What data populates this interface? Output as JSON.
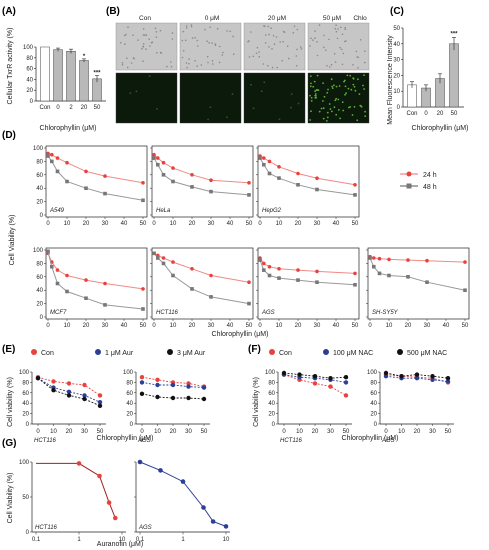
{
  "panels": {
    "A": {
      "label": "(A)",
      "ylabel": "Cellular TxrR activity (%)",
      "xlabel": "Chlorophyllin (μM)",
      "categories": [
        "Con",
        "0",
        "2",
        "20",
        "50"
      ],
      "yticks": [
        "0",
        "20",
        "40",
        "60",
        "80",
        "100"
      ],
      "sig": [
        "",
        "",
        "",
        "*",
        "***"
      ]
    },
    "B": {
      "label": "(B)",
      "columns": [
        "Con",
        "0 μM",
        "20 μM",
        "50 μM"
      ],
      "corner": "Chlo"
    },
    "C": {
      "label": "(C)",
      "ylabel": "Mean Fluorescence Intensity",
      "xlabel": "Chlorophyllin (μM)",
      "categories": [
        "Con",
        "0",
        "20",
        "50"
      ],
      "yticks": [
        "0",
        "10",
        "20",
        "30",
        "40",
        "50"
      ],
      "sig": [
        "",
        "",
        "",
        "***"
      ]
    },
    "D": {
      "label": "(D)",
      "ylabel": "Cell Viability (%)",
      "xlabel": "Chlorophyllin (μM)",
      "yticks": [
        "0",
        "20",
        "40",
        "60",
        "80",
        "100"
      ],
      "xticks": [
        "0",
        "10",
        "20",
        "30",
        "40",
        "50"
      ],
      "legend": [
        "24 h",
        "48 h"
      ]
    },
    "E": {
      "label": "(E)",
      "ylabel": "Cell viability (%)",
      "xlabel": "Chlorophyllin (μM)",
      "legend": [
        "Con",
        "1 μM Aur",
        "3  μM Aur"
      ],
      "yticks": [
        "0",
        "20",
        "40",
        "60",
        "80",
        "100"
      ],
      "xticks": [
        "0",
        "10",
        "20",
        "30",
        "50"
      ]
    },
    "F": {
      "label": "(F)",
      "ylabel": "Cell viability (%)",
      "xlabel": "Chlorophyllin (μM)",
      "legend": [
        "Con",
        "100 μM NAC",
        "500 μM NAC"
      ],
      "yticks": [
        "0",
        "20",
        "40",
        "60",
        "80",
        "100"
      ],
      "xticks": [
        "0",
        "10",
        "20",
        "30",
        "50"
      ]
    },
    "G": {
      "label": "(G)",
      "ylabel": "Cell Viability (%)",
      "xlabel": "Auranofin (μM)",
      "yticks": [
        "0",
        "50",
        "100"
      ],
      "xticks": [
        "0.1",
        "1",
        "10"
      ]
    }
  },
  "chart_data": [
    {
      "panel": "A",
      "type": "bar",
      "categories": [
        "Con",
        "0",
        "2",
        "20",
        "50"
      ],
      "values": [
        100,
        95,
        92,
        75,
        41
      ],
      "errors": [
        0,
        3,
        4,
        3,
        6
      ],
      "ylabel": "Cellular TxrR activity (%)",
      "xlabel": "Chlorophyllin (μM)",
      "ylim": [
        0,
        100
      ]
    },
    {
      "panel": "C",
      "type": "bar",
      "categories": [
        "Con",
        "0",
        "20",
        "50"
      ],
      "values": [
        14,
        12,
        18,
        40
      ],
      "errors": [
        2,
        2,
        3,
        4
      ],
      "ylabel": "Mean Fluorescence Intensity",
      "xlabel": "Chlorophyllin (μM)",
      "ylim": [
        0,
        50
      ]
    },
    {
      "panel": "D",
      "type": "scatter",
      "xlabel": "Chlorophyllin (μM)",
      "ylabel": "Cell Viability (%)",
      "xlim": [
        0,
        50
      ],
      "ylim": [
        0,
        100
      ],
      "subplots": [
        {
          "cell": "A549",
          "series": [
            {
              "name": "24 h",
              "x": [
                0,
                2,
                5,
                10,
                20,
                30,
                50
              ],
              "y": [
                92,
                90,
                85,
                78,
                65,
                58,
                48
              ]
            },
            {
              "name": "48 h",
              "x": [
                0,
                2,
                5,
                10,
                20,
                30,
                50
              ],
              "y": [
                88,
                80,
                65,
                50,
                40,
                32,
                22
              ]
            }
          ]
        },
        {
          "cell": "HeLa",
          "series": [
            {
              "name": "24 h",
              "x": [
                0,
                2,
                5,
                10,
                20,
                30,
                50
              ],
              "y": [
                90,
                85,
                78,
                70,
                60,
                52,
                48
              ]
            },
            {
              "name": "48 h",
              "x": [
                0,
                2,
                5,
                10,
                20,
                30,
                50
              ],
              "y": [
                85,
                75,
                60,
                50,
                42,
                35,
                30
              ]
            }
          ]
        },
        {
          "cell": "HepG2",
          "series": [
            {
              "name": "24 h",
              "x": [
                0,
                2,
                5,
                10,
                20,
                30,
                50
              ],
              "y": [
                88,
                85,
                80,
                72,
                62,
                55,
                45
              ]
            },
            {
              "name": "48 h",
              "x": [
                0,
                2,
                5,
                10,
                20,
                30,
                50
              ],
              "y": [
                85,
                75,
                62,
                55,
                45,
                38,
                30
              ]
            }
          ]
        },
        {
          "cell": "MCF7",
          "series": [
            {
              "name": "24 h",
              "x": [
                0,
                2,
                5,
                10,
                20,
                30,
                50
              ],
              "y": [
                95,
                82,
                70,
                62,
                55,
                50,
                42
              ]
            },
            {
              "name": "48 h",
              "x": [
                0,
                2,
                5,
                10,
                20,
                30,
                50
              ],
              "y": [
                98,
                75,
                50,
                38,
                28,
                18,
                12
              ]
            }
          ]
        },
        {
          "cell": "HCT116",
          "series": [
            {
              "name": "24 h",
              "x": [
                0,
                2,
                5,
                10,
                20,
                30,
                50
              ],
              "y": [
                95,
                92,
                88,
                82,
                72,
                62,
                52
              ]
            },
            {
              "name": "48 h",
              "x": [
                0,
                2,
                5,
                10,
                20,
                30,
                50
              ],
              "y": [
                95,
                88,
                80,
                62,
                42,
                30,
                20
              ]
            }
          ]
        },
        {
          "cell": "AGS",
          "series": [
            {
              "name": "24 h",
              "x": [
                0,
                2,
                5,
                10,
                20,
                30,
                50
              ],
              "y": [
                88,
                80,
                75,
                72,
                70,
                68,
                65
              ]
            },
            {
              "name": "48 h",
              "x": [
                0,
                2,
                5,
                10,
                20,
                30,
                50
              ],
              "y": [
                85,
                70,
                62,
                58,
                55,
                52,
                48
              ]
            }
          ]
        },
        {
          "cell": "SH-SY5Y",
          "series": [
            {
              "name": "24 h",
              "x": [
                0,
                2,
                5,
                10,
                20,
                30,
                50
              ],
              "y": [
                90,
                88,
                87,
                86,
                85,
                84,
                82
              ]
            },
            {
              "name": "48 h",
              "x": [
                0,
                2,
                5,
                10,
                20,
                30,
                50
              ],
              "y": [
                88,
                75,
                65,
                62,
                60,
                52,
                40
              ]
            }
          ]
        }
      ]
    },
    {
      "panel": "E",
      "type": "line",
      "xlabel": "Chlorophyllin (μM)",
      "ylabel": "Cell viability (%)",
      "x": [
        0,
        10,
        20,
        30,
        50
      ],
      "ylim": [
        0,
        100
      ],
      "subplots": [
        {
          "cell": "HCT116",
          "series": [
            {
              "name": "Con",
              "values": [
                90,
                82,
                78,
                75,
                55
              ]
            },
            {
              "name": "1 μM Aur",
              "values": [
                88,
                70,
                62,
                55,
                42
              ]
            },
            {
              "name": "3  μM Aur",
              "values": [
                88,
                65,
                55,
                48,
                35
              ]
            }
          ]
        },
        {
          "cell": "AGS",
          "series": [
            {
              "name": "Con",
              "values": [
                90,
                85,
                80,
                78,
                72
              ]
            },
            {
              "name": "1 μM Aur",
              "values": [
                80,
                75,
                75,
                72,
                70
              ]
            },
            {
              "name": "3  μM Aur",
              "values": [
                58,
                52,
                50,
                50,
                48
              ]
            }
          ]
        }
      ]
    },
    {
      "panel": "F",
      "type": "line",
      "xlabel": "Chlorophyllin (μM)",
      "ylabel": "Cell viability (%)",
      "x": [
        0,
        10,
        20,
        30,
        50
      ],
      "ylim": [
        0,
        100
      ],
      "subplots": [
        {
          "cell": "HCT116",
          "series": [
            {
              "name": "Con",
              "values": [
                95,
                85,
                78,
                72,
                55
              ]
            },
            {
              "name": "100 μM NAC",
              "values": [
                95,
                90,
                88,
                85,
                80
              ]
            },
            {
              "name": "500 μM NAC",
              "values": [
                98,
                95,
                92,
                88,
                90
              ]
            }
          ]
        },
        {
          "cell": "AGS",
          "series": [
            {
              "name": "Con",
              "values": [
                95,
                92,
                90,
                88,
                80
              ]
            },
            {
              "name": "100 μM NAC",
              "values": [
                92,
                88,
                88,
                85,
                82
              ]
            },
            {
              "name": "500 μM NAC",
              "values": [
                98,
                92,
                95,
                92,
                88
              ]
            }
          ]
        }
      ]
    },
    {
      "panel": "G",
      "type": "line",
      "xlabel": "Auranofin (μM)",
      "ylabel": "Cell Viability (%)",
      "xscale": "log",
      "xlim": [
        0.1,
        10
      ],
      "ylim": [
        0,
        100
      ],
      "subplots": [
        {
          "cell": "HCT116",
          "series": [
            {
              "name": "HCT116",
              "x": [
                1,
                3,
                5,
                7
              ],
              "y": [
                98,
                80,
                42,
                20
              ]
            }
          ]
        },
        {
          "cell": "AGS",
          "series": [
            {
              "name": "AGS",
              "x": [
                0.1,
                0.3,
                1,
                3,
                5,
                10
              ],
              "y": [
                100,
                88,
                72,
                35,
                15,
                8
              ]
            }
          ]
        }
      ]
    }
  ],
  "colors": {
    "bar": "#b9b9b9",
    "red": "#e8423f",
    "red_light": "#f08a86",
    "grey": "#777777",
    "blue": "#2c3f95",
    "black": "#111111",
    "darkred": "#a02020"
  }
}
